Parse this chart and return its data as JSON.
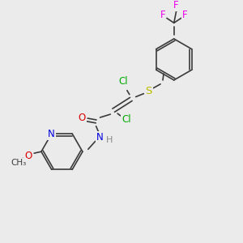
{
  "background_color": "#ebebeb",
  "bond_color": "#3a3a3a",
  "colors": {
    "C": "#3a3a3a",
    "N": "#0000dd",
    "O": "#dd0000",
    "S": "#bbbb00",
    "Cl": "#00aa00",
    "F": "#ee00ee",
    "H": "#888888"
  },
  "font_size": 8.5,
  "lw": 1.2
}
